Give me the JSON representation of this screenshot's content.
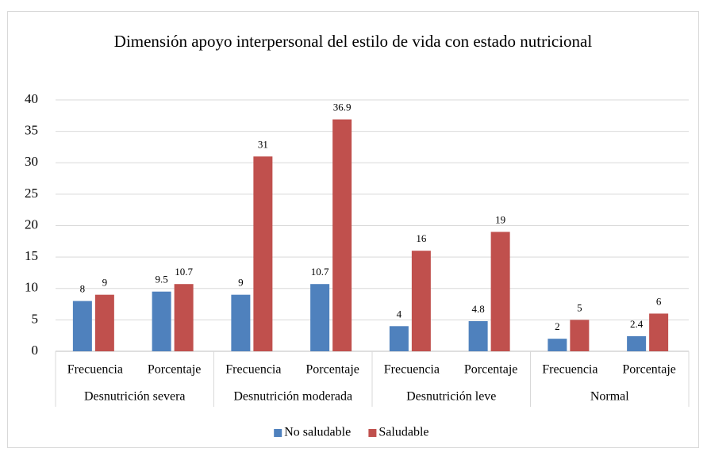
{
  "chart_data": {
    "type": "bar",
    "title": "Dimensión apoyo interpersonal del estilo de vida con estado nutricional",
    "categories": [
      "Frecuencia",
      "Porcentaje",
      "Frecuencia",
      "Porcentaje",
      "Frecuencia",
      "Porcentaje",
      "Frecuencia",
      "Porcentaje"
    ],
    "groups": [
      "Desnutrición severa",
      "Desnutrición moderada",
      "Desnutrición leve",
      "Normal"
    ],
    "series": [
      {
        "name": "No saludable",
        "color": "#4f81bd",
        "values": [
          8,
          9.5,
          9,
          10.7,
          4,
          4.8,
          2,
          2.4
        ]
      },
      {
        "name": "Saludable",
        "color": "#c0504d",
        "values": [
          9,
          10.7,
          31,
          36.9,
          16,
          19,
          5,
          6
        ]
      }
    ],
    "ylim": [
      0,
      40
    ],
    "yticks": [
      0,
      5,
      10,
      15,
      20,
      25,
      30,
      35,
      40
    ],
    "grid": true,
    "legend": "bottom"
  }
}
